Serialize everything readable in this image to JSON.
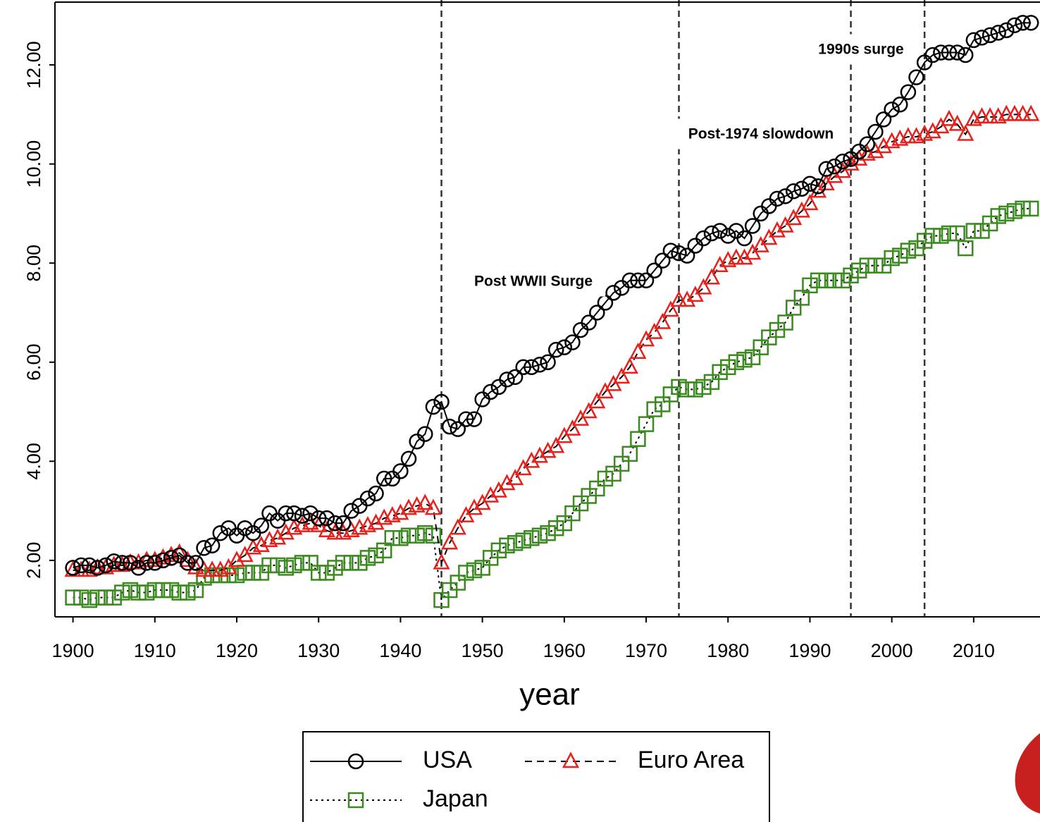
{
  "chart_data": {
    "type": "line",
    "x_label": "year",
    "x": [
      1900,
      1901,
      1902,
      1903,
      1904,
      1905,
      1906,
      1907,
      1908,
      1909,
      1910,
      1911,
      1912,
      1913,
      1914,
      1915,
      1916,
      1917,
      1918,
      1919,
      1920,
      1921,
      1922,
      1923,
      1924,
      1925,
      1926,
      1927,
      1928,
      1929,
      1930,
      1931,
      1932,
      1933,
      1934,
      1935,
      1936,
      1937,
      1938,
      1939,
      1940,
      1941,
      1942,
      1943,
      1944,
      1945,
      1946,
      1947,
      1948,
      1949,
      1950,
      1951,
      1952,
      1953,
      1954,
      1955,
      1956,
      1957,
      1958,
      1959,
      1960,
      1961,
      1962,
      1963,
      1964,
      1965,
      1966,
      1967,
      1968,
      1969,
      1970,
      1971,
      1972,
      1973,
      1974,
      1975,
      1976,
      1977,
      1978,
      1979,
      1980,
      1981,
      1982,
      1983,
      1984,
      1985,
      1986,
      1987,
      1988,
      1989,
      1990,
      1991,
      1992,
      1993,
      1994,
      1995,
      1996,
      1997,
      1998,
      1999,
      2000,
      2001,
      2002,
      2003,
      2004,
      2005,
      2006,
      2007,
      2008,
      2009,
      2010,
      2011,
      2012,
      2013,
      2014,
      2015,
      2016,
      2017
    ],
    "series": [
      {
        "name": "USA",
        "color": "#000000",
        "marker": "circle",
        "line_style": "solid",
        "values": [
          1.85,
          1.9,
          1.9,
          1.85,
          1.9,
          1.98,
          1.95,
          1.95,
          1.85,
          1.95,
          1.95,
          2.0,
          2.05,
          2.1,
          1.95,
          1.95,
          2.25,
          2.3,
          2.55,
          2.65,
          2.5,
          2.65,
          2.55,
          2.7,
          2.95,
          2.8,
          2.95,
          2.95,
          2.9,
          2.95,
          2.85,
          2.85,
          2.75,
          2.75,
          3.0,
          3.1,
          3.25,
          3.35,
          3.65,
          3.65,
          3.8,
          4.05,
          4.4,
          4.55,
          5.1,
          5.2,
          4.7,
          4.65,
          4.85,
          4.85,
          5.25,
          5.4,
          5.5,
          5.65,
          5.7,
          5.9,
          5.9,
          5.95,
          6.0,
          6.25,
          6.3,
          6.4,
          6.65,
          6.8,
          7.0,
          7.2,
          7.4,
          7.5,
          7.65,
          7.65,
          7.65,
          7.85,
          8.05,
          8.25,
          8.2,
          8.15,
          8.35,
          8.5,
          8.6,
          8.65,
          8.55,
          8.65,
          8.5,
          8.75,
          9.0,
          9.15,
          9.3,
          9.35,
          9.45,
          9.5,
          9.6,
          9.55,
          9.9,
          9.95,
          10.05,
          10.1,
          10.25,
          10.4,
          10.65,
          10.9,
          11.1,
          11.2,
          11.45,
          11.75,
          12.05,
          12.2,
          12.25,
          12.25,
          12.25,
          12.2,
          12.5,
          12.55,
          12.6,
          12.65,
          12.7,
          12.8,
          12.85,
          12.85
        ]
      },
      {
        "name": "Euro Area",
        "color": "#e8201b",
        "marker": "triangle",
        "line_style": "dashed",
        "values": [
          1.8,
          1.8,
          1.8,
          1.85,
          1.85,
          1.9,
          1.9,
          1.95,
          1.95,
          2.0,
          2.0,
          2.05,
          2.1,
          2.15,
          2.0,
          1.85,
          1.8,
          1.8,
          1.8,
          1.85,
          2.0,
          2.1,
          2.25,
          2.3,
          2.4,
          2.45,
          2.55,
          2.65,
          2.7,
          2.75,
          2.7,
          2.6,
          2.55,
          2.55,
          2.6,
          2.65,
          2.7,
          2.75,
          2.85,
          2.9,
          2.95,
          3.05,
          3.1,
          3.15,
          3.05,
          1.95,
          2.35,
          2.65,
          2.9,
          3.05,
          3.15,
          3.3,
          3.4,
          3.55,
          3.65,
          3.85,
          4.0,
          4.1,
          4.2,
          4.3,
          4.5,
          4.65,
          4.85,
          5.0,
          5.2,
          5.4,
          5.55,
          5.7,
          5.9,
          6.2,
          6.45,
          6.6,
          6.8,
          7.05,
          7.25,
          7.25,
          7.35,
          7.5,
          7.7,
          7.95,
          8.05,
          8.1,
          8.1,
          8.2,
          8.35,
          8.5,
          8.65,
          8.75,
          8.9,
          9.05,
          9.2,
          9.45,
          9.6,
          9.75,
          9.85,
          10.0,
          10.1,
          10.2,
          10.25,
          10.35,
          10.45,
          10.5,
          10.55,
          10.55,
          10.6,
          10.65,
          10.75,
          10.9,
          10.8,
          10.6,
          10.9,
          10.95,
          10.95,
          10.95,
          11.0,
          11.0,
          11.0,
          11.0
        ]
      },
      {
        "name": "Japan",
        "color": "#3a8a1f",
        "marker": "square",
        "line_style": "dotted",
        "values": [
          1.25,
          1.25,
          1.2,
          1.25,
          1.25,
          1.25,
          1.35,
          1.4,
          1.35,
          1.35,
          1.4,
          1.4,
          1.4,
          1.35,
          1.35,
          1.4,
          1.65,
          1.7,
          1.7,
          1.7,
          1.7,
          1.75,
          1.75,
          1.75,
          1.9,
          1.9,
          1.85,
          1.9,
          1.95,
          1.95,
          1.75,
          1.75,
          1.85,
          1.95,
          1.95,
          1.95,
          2.05,
          2.1,
          2.2,
          2.45,
          2.45,
          2.5,
          2.5,
          2.55,
          2.5,
          1.2,
          1.4,
          1.55,
          1.75,
          1.8,
          1.85,
          2.05,
          2.2,
          2.3,
          2.35,
          2.4,
          2.45,
          2.5,
          2.55,
          2.65,
          2.75,
          2.95,
          3.15,
          3.3,
          3.45,
          3.65,
          3.75,
          3.95,
          4.15,
          4.45,
          4.75,
          5.05,
          5.15,
          5.35,
          5.5,
          5.45,
          5.45,
          5.5,
          5.6,
          5.8,
          5.9,
          6.0,
          6.05,
          6.1,
          6.3,
          6.5,
          6.65,
          6.8,
          7.1,
          7.3,
          7.55,
          7.65,
          7.65,
          7.65,
          7.65,
          7.75,
          7.85,
          7.95,
          7.95,
          7.95,
          8.1,
          8.15,
          8.25,
          8.3,
          8.45,
          8.55,
          8.55,
          8.6,
          8.6,
          8.3,
          8.65,
          8.65,
          8.8,
          8.95,
          9.0,
          9.05,
          9.1,
          9.1
        ]
      }
    ],
    "xlim": [
      1897.8,
      2018.1
    ],
    "xticks": [
      1900,
      1910,
      1920,
      1930,
      1940,
      1950,
      1960,
      1970,
      1980,
      1990,
      2000,
      2010
    ],
    "ylim": [
      0.86,
      13.31
    ],
    "yticks": [
      {
        "value": 2,
        "label": "2.00"
      },
      {
        "value": 4,
        "label": "4.00"
      },
      {
        "value": 6,
        "label": "6.00"
      },
      {
        "value": 8,
        "label": "8.00"
      },
      {
        "value": 10,
        "label": "10.00"
      },
      {
        "value": 12,
        "label": "12.00"
      }
    ],
    "vertical_lines": [
      1945,
      1974,
      1995,
      2004
    ],
    "annotations": [
      "Post WWII Surge",
      "Post-1974 slowdown",
      "1990s surge"
    ]
  }
}
